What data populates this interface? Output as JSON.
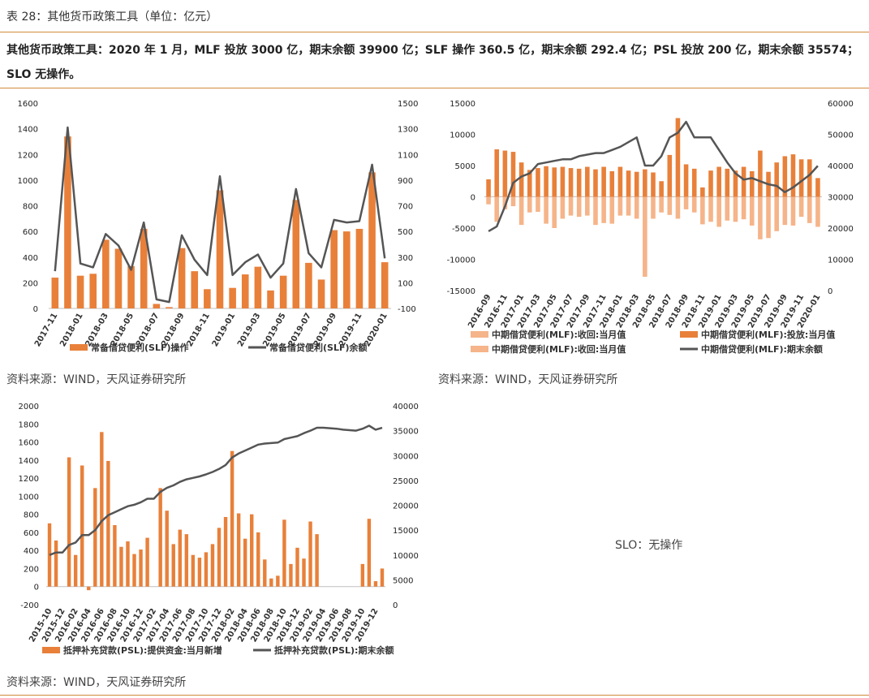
{
  "page": {
    "caption": "表 28：其他货币政策工具（单位：亿元）",
    "summary": "其他货币政策工具：2020 年 1 月，MLF 投放 3000 亿，期末余额 39900 亿；SLF 操作 360.5 亿，期末余额 292.4 亿；PSL 投放 200 亿，期末余额 35574；SLO 无操作。",
    "source_1": "资料来源：WIND，天风证券研究所",
    "source_2": "资料来源：WIND，天风证券研究所",
    "source_3": "资料来源：WIND，天风证券研究所",
    "slo_text": "SLO：无操作"
  },
  "colors": {
    "bar": "#e8803a",
    "bar_light": "#f5b489",
    "line": "#555555",
    "rule": "#d08a3c"
  },
  "chart_data": [
    {
      "id": "slf",
      "type": "bar+line",
      "x": [
        "2017-11",
        "2017-12",
        "2018-01",
        "2018-02",
        "2018-03",
        "2018-04",
        "2018-05",
        "2018-06",
        "2018-07",
        "2018-08",
        "2018-09",
        "2018-10",
        "2018-11",
        "2018-12",
        "2019-01",
        "2019-02",
        "2019-03",
        "2019-04",
        "2019-05",
        "2019-06",
        "2019-07",
        "2019-08",
        "2019-09",
        "2019-10",
        "2019-11",
        "2019-12",
        "2020-01"
      ],
      "x_tick_labels": [
        "2017-11",
        "2018-01",
        "2018-03",
        "2018-05",
        "2018-07",
        "2018-09",
        "2018-11",
        "2019-01",
        "2019-03",
        "2019-05",
        "2019-07",
        "2019-09",
        "2019-11",
        "2020-01"
      ],
      "y_left_ticks": [
        "1600",
        "1400",
        "1200",
        "1000",
        "800",
        "600",
        "400",
        "200",
        "0"
      ],
      "y_right_ticks": [
        "1500",
        "1300",
        "1100",
        "900",
        "700",
        "500",
        "300",
        "100",
        "-100"
      ],
      "ylim_left": [
        0,
        1600
      ],
      "ylim_right": [
        -100,
        1500
      ],
      "series": [
        {
          "name": "常备借贷便利(SLF)操作",
          "kind": "bar",
          "axis": "left",
          "values": [
            240,
            1340,
            255,
            270,
            535,
            465,
            330,
            620,
            35,
            10,
            470,
            290,
            150,
            920,
            160,
            265,
            325,
            140,
            255,
            845,
            355,
            225,
            610,
            600,
            620,
            1060,
            360
          ]
        },
        {
          "name": "常备借贷便利(SLF)余额",
          "kind": "line",
          "axis": "right",
          "values": [
            190,
            1310,
            250,
            220,
            480,
            390,
            200,
            570,
            -30,
            -50,
            470,
            280,
            160,
            930,
            160,
            260,
            320,
            140,
            250,
            830,
            330,
            220,
            590,
            570,
            580,
            1020,
            290
          ]
        }
      ]
    },
    {
      "id": "mlf",
      "type": "bar+line",
      "x": [
        "2016-09",
        "2016-10",
        "2016-11",
        "2016-12",
        "2017-01",
        "2017-02",
        "2017-03",
        "2017-04",
        "2017-05",
        "2017-06",
        "2017-07",
        "2017-08",
        "2017-09",
        "2017-10",
        "2017-11",
        "2017-12",
        "2018-01",
        "2018-02",
        "2018-03",
        "2018-04",
        "2018-05",
        "2018-06",
        "2018-07",
        "2018-08",
        "2018-09",
        "2018-10",
        "2018-11",
        "2018-12",
        "2019-01",
        "2019-02",
        "2019-03",
        "2019-04",
        "2019-05",
        "2019-06",
        "2019-07",
        "2019-08",
        "2019-09",
        "2019-10",
        "2019-11",
        "2019-12",
        "2020-01"
      ],
      "x_tick_labels": [
        "2016-09",
        "2016-11",
        "2017-01",
        "2017-03",
        "2017-05",
        "2017-07",
        "2017-09",
        "2017-11",
        "2018-01",
        "2018-03",
        "2018-05",
        "2018-07",
        "2018-09",
        "2018-11",
        "2019-01",
        "2019-03",
        "2019-05",
        "2019-07",
        "2019-09",
        "2019-11",
        "2020-01"
      ],
      "y_left_ticks": [
        "15000",
        "10000",
        "5000",
        "0",
        "-5000",
        "-10000",
        "-15000"
      ],
      "y_right_ticks": [
        "60000",
        "50000",
        "40000",
        "30000",
        "20000",
        "10000",
        "0"
      ],
      "ylim_left": [
        -15000,
        15000
      ],
      "ylim_right": [
        0,
        60000
      ],
      "series": [
        {
          "name": "中期借贷便利(MLF):投放:当月值",
          "kind": "bar",
          "axis": "left",
          "values": [
            2800,
            7600,
            7400,
            7200,
            5500,
            4300,
            4600,
            4900,
            4700,
            4800,
            4600,
            4500,
            4800,
            4400,
            4800,
            4100,
            4800,
            4200,
            4000,
            4400,
            3900,
            2500,
            6700,
            12600,
            5200,
            4500,
            1500,
            4200,
            4800,
            4500,
            4200,
            4800,
            4100,
            7400,
            4000,
            5500,
            6500,
            6800,
            6000,
            6000,
            3000
          ]
        },
        {
          "name": "中期借贷便利(MLF):收回:当月值",
          "kind": "bar_light",
          "axis": "left",
          "values": [
            -1200,
            -4000,
            -2000,
            -1500,
            -4500,
            -2500,
            -2400,
            -4300,
            -5000,
            -3500,
            -3000,
            -3200,
            -3000,
            -4500,
            -4200,
            -4300,
            -3000,
            -3000,
            -3500,
            -12800,
            -3500,
            -2500,
            -2900,
            -3500,
            -2000,
            -2500,
            -4400,
            -4000,
            -4800,
            -3800,
            -4000,
            -3600,
            -4600,
            -6800,
            -6600,
            -5500,
            -4500,
            -4600,
            -3200,
            -4200,
            -4800
          ]
        },
        {
          "name": "中期借贷便利(MLF):期末余额",
          "kind": "line",
          "axis": "right",
          "values": [
            19000,
            20500,
            27000,
            34500,
            36500,
            37500,
            40500,
            41000,
            41500,
            42000,
            42000,
            43000,
            43500,
            44000,
            44000,
            45000,
            46000,
            47500,
            49000,
            40000,
            40000,
            43000,
            49000,
            50500,
            54000,
            49000,
            49000,
            49000,
            45000,
            41000,
            37500,
            35500,
            36000,
            35000,
            34000,
            33500,
            31500,
            33000,
            35000,
            37000,
            39900
          ]
        }
      ]
    },
    {
      "id": "psl",
      "type": "bar+line",
      "x": [
        "2015-10",
        "2015-11",
        "2015-12",
        "2016-01",
        "2016-02",
        "2016-03",
        "2016-04",
        "2016-05",
        "2016-06",
        "2016-07",
        "2016-08",
        "2016-09",
        "2016-10",
        "2016-11",
        "2016-12",
        "2017-01",
        "2017-02",
        "2017-03",
        "2017-04",
        "2017-05",
        "2017-06",
        "2017-07",
        "2017-08",
        "2017-09",
        "2017-10",
        "2017-11",
        "2017-12",
        "2018-01",
        "2018-02",
        "2018-03",
        "2018-04",
        "2018-05",
        "2018-06",
        "2018-07",
        "2018-08",
        "2018-09",
        "2018-10",
        "2018-11",
        "2018-12",
        "2019-01",
        "2019-02",
        "2019-03",
        "2019-04",
        "2019-05",
        "2019-06",
        "2019-07",
        "2019-08",
        "2019-09",
        "2019-10",
        "2019-11",
        "2019-12",
        "2020-01"
      ],
      "x_tick_labels": [
        "2015-10",
        "2015-12",
        "2016-02",
        "2016-04",
        "2016-06",
        "2016-08",
        "2016-10",
        "2016-12",
        "2017-02",
        "2017-04",
        "2017-06",
        "2017-08",
        "2017-10",
        "2017-12",
        "2018-02",
        "2018-04",
        "2018-06",
        "2018-08",
        "2018-10",
        "2018-12",
        "2019-02",
        "2019-04",
        "2019-06",
        "2019-08",
        "2019-10",
        "2019-12"
      ],
      "y_left_ticks": [
        "2000",
        "1800",
        "1600",
        "1400",
        "1200",
        "1000",
        "800",
        "600",
        "400",
        "200",
        "0",
        "-200"
      ],
      "y_right_ticks": [
        "40000",
        "35000",
        "30000",
        "25000",
        "20000",
        "15000",
        "10000",
        "5000",
        "0"
      ],
      "ylim_left": [
        -200,
        2000
      ],
      "ylim_right": [
        0,
        40000
      ],
      "series": [
        {
          "name": "抵押补充贷款(PSL):提供资金:当月新增",
          "kind": "bar",
          "axis": "left",
          "values": [
            700,
            510,
            0,
            1430,
            350,
            1340,
            -40,
            1090,
            1710,
            1390,
            680,
            440,
            500,
            360,
            410,
            540,
            0,
            1090,
            840,
            470,
            630,
            580,
            350,
            320,
            380,
            470,
            650,
            770,
            1500,
            810,
            530,
            800,
            600,
            300,
            90,
            120,
            740,
            250,
            430,
            310,
            720,
            580,
            0,
            0,
            0,
            0,
            0,
            0,
            250,
            750,
            60,
            200
          ]
        },
        {
          "name": "抵押补充贷款(PSL):期末余额",
          "kind": "line",
          "axis": "right",
          "values": [
            10000,
            10500,
            10500,
            12000,
            12500,
            14000,
            14000,
            15000,
            16800,
            18000,
            18600,
            19200,
            19800,
            20100,
            20600,
            21300,
            21300,
            22700,
            23500,
            24000,
            24700,
            25200,
            25500,
            25800,
            26200,
            26700,
            27300,
            28100,
            29600,
            30400,
            31000,
            31600,
            32200,
            32400,
            32500,
            32600,
            33300,
            33600,
            33900,
            34500,
            35000,
            35600,
            35600,
            35500,
            35400,
            35200,
            35100,
            35000,
            35400,
            36000,
            35200,
            35574
          ]
        }
      ]
    }
  ]
}
